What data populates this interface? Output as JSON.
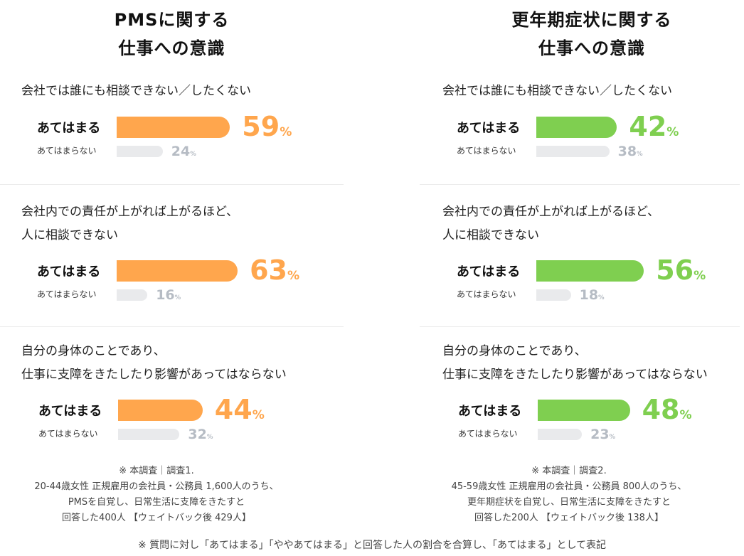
{
  "chart_data": [
    {
      "type": "bar",
      "title": "PMSに関する\n仕事への意識",
      "color": "#ffa64d",
      "unit": "%",
      "questions": [
        {
          "text": "会社では誰にも相談できない／したくない",
          "yes": 59,
          "no": 24
        },
        {
          "text": "会社内での責任が上がれば上がるほど、\n人に相談できない",
          "yes": 63,
          "no": 16
        },
        {
          "text": "自分の身体のことであり、\n仕事に支障をきたしたり影響があってはならない",
          "yes": 44,
          "no": 32
        }
      ],
      "note": "※ 本調査｜調査1.\n20-44歳女性 正規雇用の会社員・公務員 1,600人のうち、\nPMSを自覚し、日常生活に支障をきたすと\n回答した400人 【ウェイトバック後 429人】"
    },
    {
      "type": "bar",
      "title": "更年期症状に関する\n仕事への意識",
      "color": "#7fcf50",
      "unit": "%",
      "questions": [
        {
          "text": "会社では誰にも相談できない／したくない",
          "yes": 42,
          "no": 38
        },
        {
          "text": "会社内での責任が上がれば上がるほど、\n人に相談できない",
          "yes": 56,
          "no": 18
        },
        {
          "text": "自分の身体のことであり、\n仕事に支障をきたしたり影響があってはならない",
          "yes": 48,
          "no": 23
        }
      ],
      "note": "※ 本調査｜調査2.\n45-59歳女性 正規雇用の会社員・公務員 800人のうち、\n更年期症状を自覚し、日常生活に支障をきたすと\n回答した200人 【ウェイトバック後 138人】"
    }
  ],
  "labels": {
    "yes": "あてはまる",
    "no": "あてはまらない"
  },
  "footer": "※ 質問に対し「あてはまる」「ややあてはまる」と回答した人の割合を合算し、「あてはまる」として表記"
}
